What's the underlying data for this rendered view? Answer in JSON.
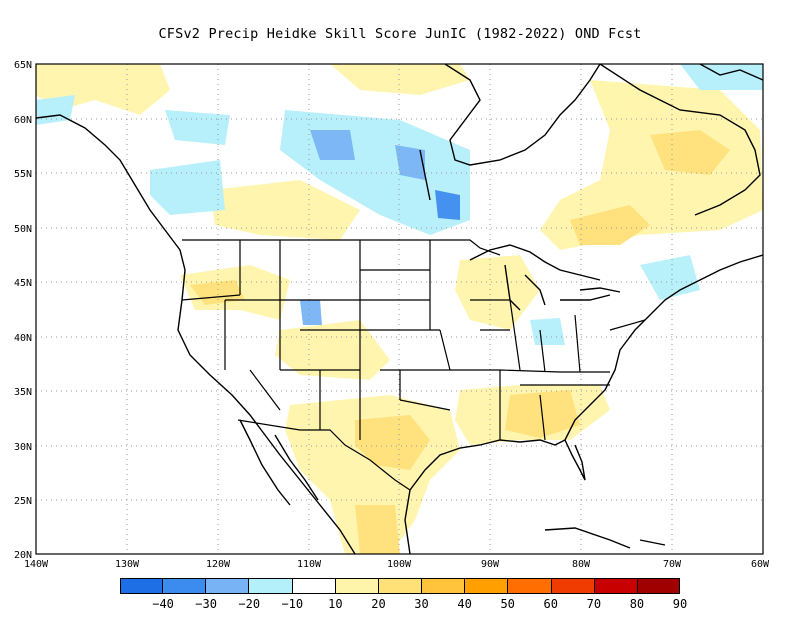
{
  "title": "CFSv2 Precip Heidke Skill Score JunIC (1982-2022) OND Fcst",
  "map": {
    "lat_labels": [
      "65N",
      "60N",
      "55N",
      "50N",
      "45N",
      "40N",
      "35N",
      "30N",
      "25N",
      "20N"
    ],
    "lon_labels": [
      "140W",
      "130W",
      "120W",
      "110W",
      "100W",
      "90W",
      "80W",
      "70W",
      "60W"
    ],
    "lat_range": [
      20,
      65
    ],
    "lon_range": [
      -140,
      -60
    ],
    "grid": "dotted",
    "land_outline_color": "#000000"
  },
  "colorbar": {
    "colors": [
      "#1e6ee6",
      "#3c8cf0",
      "#78b4f5",
      "#b4f0fa",
      "#ffffff",
      "#fff5aa",
      "#ffe178",
      "#ffc43c",
      "#ffa000",
      "#ff6e00",
      "#f03c00",
      "#c80000",
      "#a00000"
    ],
    "ticks": [
      "−40",
      "−30",
      "−20",
      "−10",
      "10",
      "20",
      "30",
      "40",
      "50",
      "60",
      "70",
      "80",
      "90"
    ]
  },
  "skill_fields": [
    {
      "name": "positive-skill-north-plains",
      "color": "#fff5aa"
    },
    {
      "name": "positive-skill-texas",
      "color": "#ffe178"
    },
    {
      "name": "negative-skill-hudson",
      "color": "#b4f0fa"
    }
  ]
}
